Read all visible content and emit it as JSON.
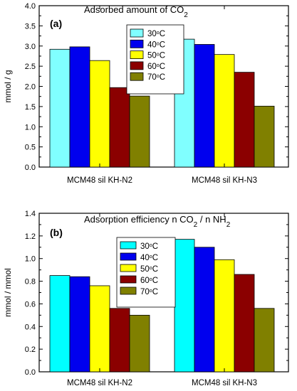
{
  "chart_data": [
    {
      "type": "bar",
      "panel_label": "(a)",
      "title_main": "Adsorbed amount of CO",
      "title_sub": "2",
      "ylabel": "mmol / g",
      "ylim": [
        0,
        4.0
      ],
      "yticks": [
        "0.0",
        "0.5",
        "1.0",
        "1.5",
        "2.0",
        "2.5",
        "3.0",
        "3.5",
        "4.0"
      ],
      "categories": [
        "MCM48 sil KH-N2",
        "MCM48 sil KH-N3"
      ],
      "legend_position": "top-center",
      "series": [
        {
          "name": "30°C",
          "temp": "30",
          "values": [
            2.92,
            3.17
          ],
          "color": "#80ffff"
        },
        {
          "name": "40°C",
          "temp": "40",
          "values": [
            2.98,
            3.04
          ],
          "color": "#0000ee"
        },
        {
          "name": "50°C",
          "temp": "50",
          "values": [
            2.64,
            2.79
          ],
          "color": "#ffff00"
        },
        {
          "name": "60°C",
          "temp": "60",
          "values": [
            1.97,
            2.35
          ],
          "color": "#8b0000"
        },
        {
          "name": "70°C",
          "temp": "70",
          "values": [
            1.76,
            1.51
          ],
          "color": "#808000"
        }
      ]
    },
    {
      "type": "bar",
      "panel_label": "(b)",
      "title_main": "Adsorption efficiency n CO",
      "title_sub": "2",
      "title_rest": " / n NH",
      "title_sub2": "2",
      "ylabel": "mmol / mmol",
      "ylim": [
        0,
        1.4
      ],
      "yticks": [
        "0.0",
        "0.2",
        "0.4",
        "0.6",
        "0.8",
        "1.0",
        "1.2",
        "1.4"
      ],
      "categories": [
        "MCM48 sil KH-N2",
        "MCM48 sil KH-N3"
      ],
      "legend_position": "top-left",
      "series": [
        {
          "name": "30°C",
          "temp": "30",
          "values": [
            0.85,
            1.17
          ],
          "color": "#00ffff"
        },
        {
          "name": "40°C",
          "temp": "40",
          "values": [
            0.84,
            1.1
          ],
          "color": "#0000ee"
        },
        {
          "name": "50°C",
          "temp": "50",
          "values": [
            0.76,
            0.99
          ],
          "color": "#ffff00"
        },
        {
          "name": "60°C",
          "temp": "60",
          "values": [
            0.56,
            0.86
          ],
          "color": "#8b0000"
        },
        {
          "name": "70°C",
          "temp": "70",
          "values": [
            0.5,
            0.56
          ],
          "color": "#808000"
        }
      ]
    }
  ]
}
